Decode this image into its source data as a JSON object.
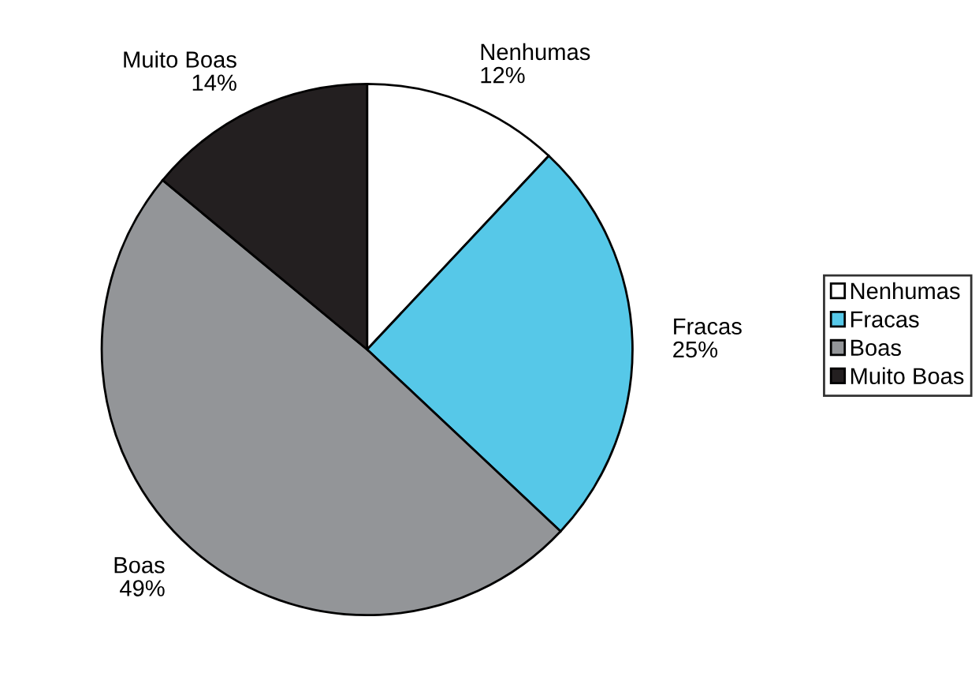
{
  "chart_data": {
    "type": "pie",
    "categories": [
      "Nenhumas",
      "Fracas",
      "Boas",
      "Muito Boas"
    ],
    "values": [
      12,
      25,
      49,
      14
    ],
    "value_labels": [
      "12%",
      "25%",
      "49%",
      "14%"
    ],
    "colors": [
      "#ffffff",
      "#56c8e8",
      "#939598",
      "#231f20"
    ],
    "legend": "right"
  }
}
